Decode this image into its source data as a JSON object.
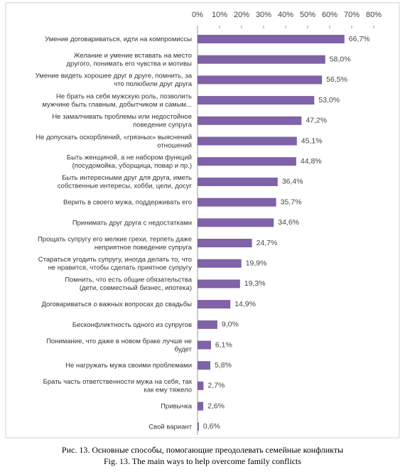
{
  "chart_data": {
    "type": "barh",
    "categories": [
      "Умение договариваться, идти на компромиссы",
      "Желание и умение вставать на место\nдругого, понимать его чувства и мотивы",
      "Умение видеть хорошее друг в друге, помнить, за\nчто полюбили друг друга",
      "Не брать на себя мужскую роль, позволить\nмужчине быть главным, добытчиком и самым...",
      "Не замалчивать проблемы или недостойное\nповедение супруга",
      "Не допускать оскорблений, «грязных» выяснений\nотношений",
      "Быть женщиной, а не набором функций\n(посудомойка, уборщица, повар и пр.)",
      "Быть интересными друг для друга, иметь\nсобственные интересы, хобби, цели, досуг",
      "Верить в своего мужа, поддерживать его",
      "Принимать друг друга с недостатками",
      "Прощать супругу его мелкие грехи, терпеть даже\nнеприятное поведение супруга",
      "Стараться угодить супругу, иногда делать то, что\nне нравится, чтобы сделать приятное супругу",
      "Помнить, что есть общие обязательства\n(дети, совместный бизнес, ипотека)",
      "Договариваться о важных вопросах до свадьбы",
      "Бесконфликтность одного из супругов",
      "Понимание, что даже в новом браке лучше не\nбудет",
      "Не нагружать мужа своими проблемами",
      "Брать часть ответственности мужа на себя, так\nкак ему тяжело",
      "Привычка",
      "Свой вариант"
    ],
    "values": [
      66.7,
      58.0,
      56.5,
      53.0,
      47.2,
      45.1,
      44.8,
      36.4,
      35.7,
      34.6,
      24.7,
      19.9,
      19.3,
      14.9,
      9.0,
      6.1,
      5.8,
      2.7,
      2.6,
      0.6
    ],
    "value_labels": [
      "66,7%",
      "58,0%",
      "56,5%",
      "53,0%",
      "47,2%",
      "45,1%",
      "44,8%",
      "36,4%",
      "35,7%",
      "34,6%",
      "24,7%",
      "19,9%",
      "19,3%",
      "14,9%",
      "9,0%",
      "6,1%",
      "5,8%",
      "2,7%",
      "2,6%",
      "0,6%"
    ],
    "color": "#7f62a8",
    "xlim": [
      0,
      80
    ],
    "xticks": [
      {
        "value": 0,
        "label": "0%"
      },
      {
        "value": 10,
        "label": "10%"
      },
      {
        "value": 20,
        "label": "20%"
      },
      {
        "value": 30,
        "label": "30%"
      },
      {
        "value": 40,
        "label": "40%"
      },
      {
        "value": 50,
        "label": "50%"
      },
      {
        "value": 60,
        "label": "60%"
      },
      {
        "value": 70,
        "label": "70%"
      },
      {
        "value": 80,
        "label": "80%"
      }
    ],
    "caption": [
      "Рис. 13. Основные способы, помогающие преодолевать семейные конфликты",
      "Fig. 13. The main ways to help overcome family conflicts"
    ]
  }
}
